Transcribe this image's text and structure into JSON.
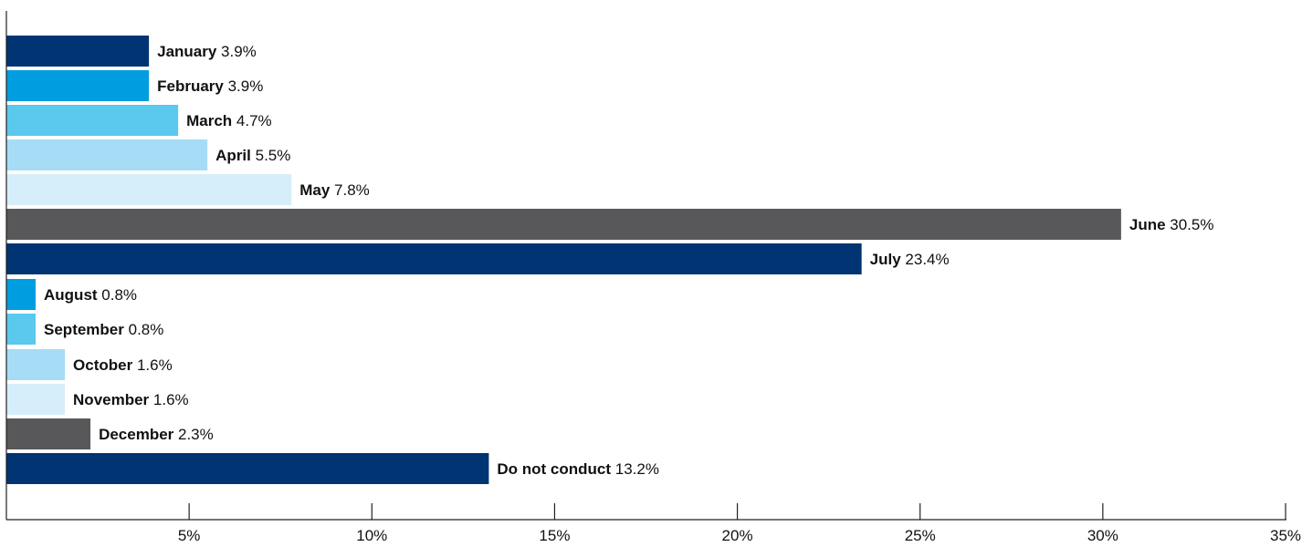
{
  "chart_data": {
    "type": "bar",
    "orientation": "horizontal",
    "title": "",
    "xlabel": "",
    "ylabel": "",
    "value_suffix": "%",
    "xlim": [
      0,
      35
    ],
    "grid": false,
    "categories": [
      "January",
      "February",
      "March",
      "April",
      "May",
      "June",
      "July",
      "August",
      "September",
      "October",
      "November",
      "December",
      "Do not conduct"
    ],
    "values": [
      3.9,
      3.9,
      4.7,
      5.5,
      7.8,
      30.5,
      23.4,
      0.8,
      0.8,
      1.6,
      1.6,
      2.3,
      13.2
    ],
    "value_labels": [
      "3.9%",
      "3.9%",
      "4.7%",
      "5.5%",
      "7.8%",
      "30.5%",
      "23.4%",
      "0.8%",
      "0.8%",
      "1.6%",
      "1.6%",
      "2.3%",
      "13.2%"
    ],
    "colors": [
      "#003473",
      "#009ee0",
      "#5bc8ee",
      "#a6dcf5",
      "#d6edfa",
      "#58585a",
      "#003473",
      "#009ee0",
      "#5bc8ee",
      "#a6dcf5",
      "#d6edfa",
      "#58585a",
      "#003473"
    ],
    "ticks": [
      5,
      10,
      15,
      20,
      25,
      30,
      35
    ],
    "tick_labels": [
      "5%",
      "10%",
      "15%",
      "20%",
      "25%",
      "30%",
      "35%"
    ]
  }
}
